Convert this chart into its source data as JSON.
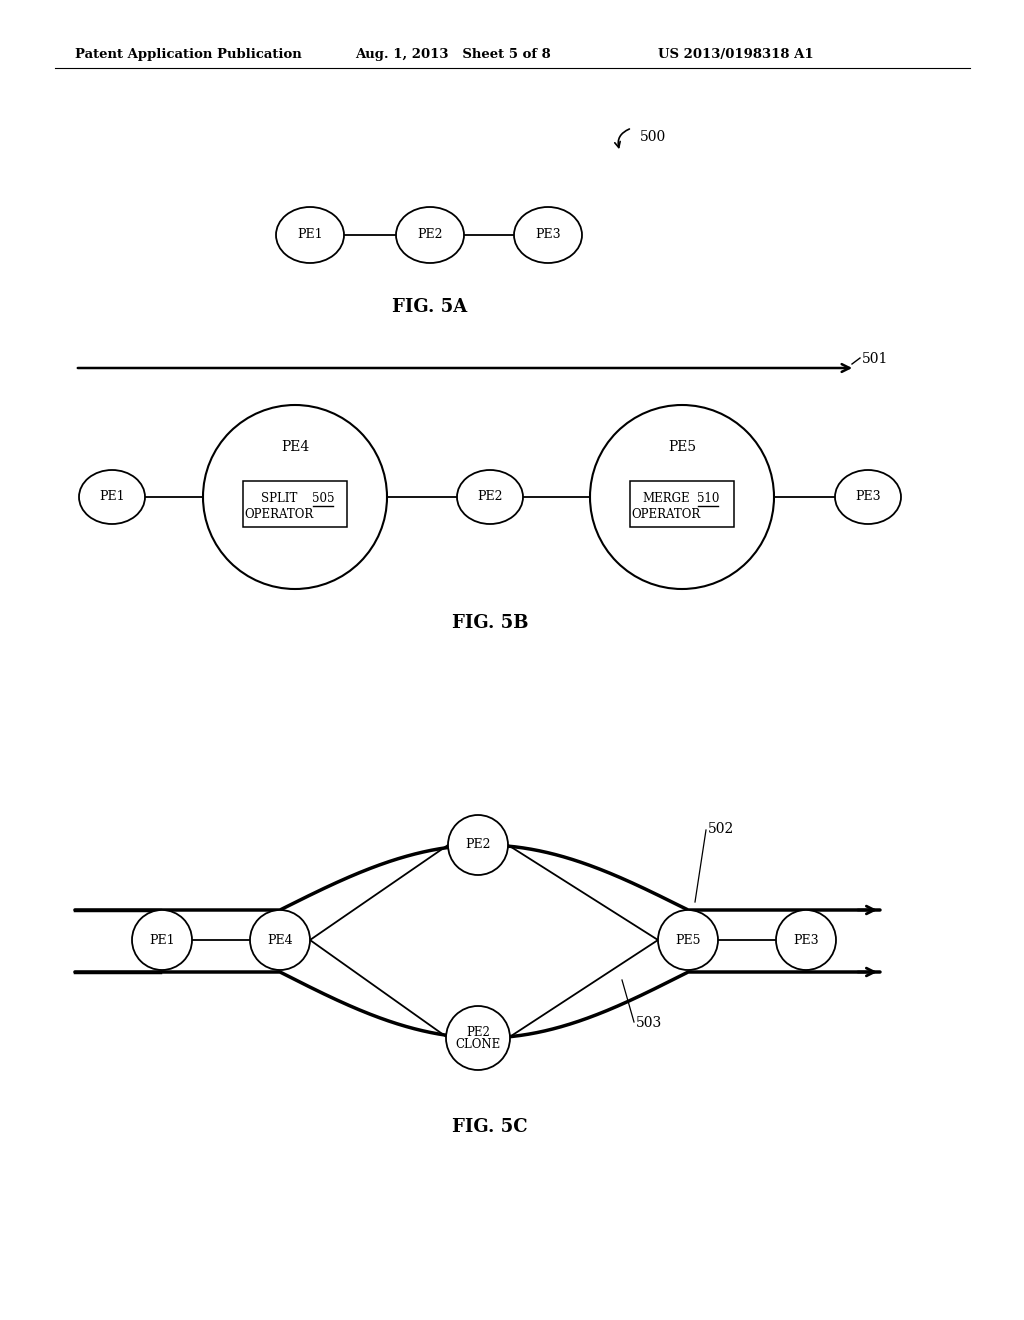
{
  "bg_color": "#ffffff",
  "header_text": "Patent Application Publication",
  "header_date": "Aug. 1, 2013   Sheet 5 of 8",
  "header_patent": "US 2013/0198318 A1",
  "fig5a_label": "FIG. 5A",
  "fig5b_label": "FIG. 5B",
  "fig5c_label": "FIG. 5C",
  "ref500": "500",
  "ref501": "501",
  "ref502": "502",
  "ref503": "503",
  "ref505": "505",
  "ref510": "510"
}
